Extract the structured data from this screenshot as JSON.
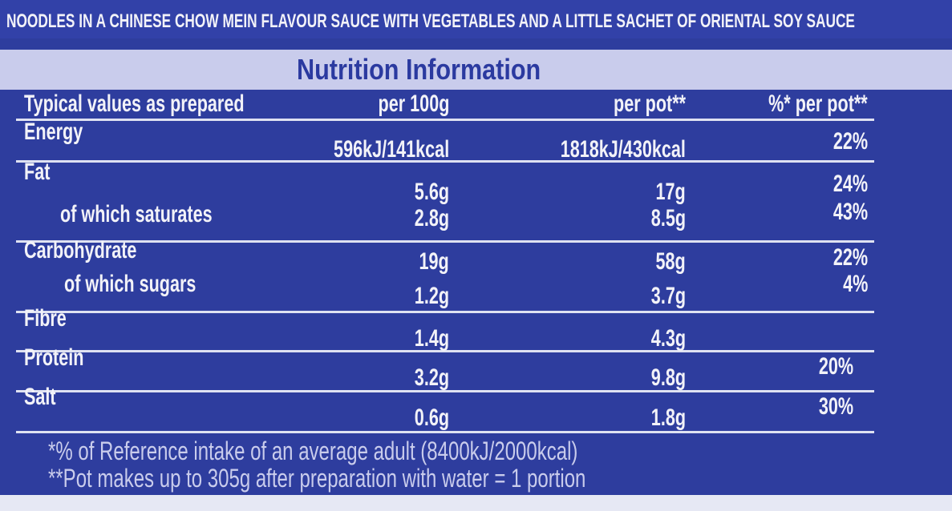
{
  "header": {
    "description": "NOODLES IN A CHINESE CHOW MEIN FLAVOUR SAUCE WITH VEGETABLES AND A LITTLE SACHET OF ORIENTAL SOY SAUCE",
    "title": "Nutrition Information"
  },
  "table": {
    "columns": [
      "Typical values as prepared",
      "per 100g",
      "per pot**",
      "%* per pot**"
    ],
    "rows": [
      {
        "name": "Energy",
        "per_100g": "596kJ/141kcal",
        "per_pot": "1818kJ/430kcal",
        "ri": "22%"
      },
      {
        "name": "Fat",
        "per_100g": "5.6g",
        "per_pot": "17g",
        "ri": "24%"
      },
      {
        "name": "of which saturates",
        "per_100g": "2.8g",
        "per_pot": "8.5g",
        "ri": "43%"
      },
      {
        "name": "Carbohydrate",
        "per_100g": "19g",
        "per_pot": "58g",
        "ri": "22%"
      },
      {
        "name": "of which sugars",
        "per_100g": "1.2g",
        "per_pot": "3.7g",
        "ri": "4%"
      },
      {
        "name": "Fibre",
        "per_100g": "1.4g",
        "per_pot": "4.3g"
      },
      {
        "name": "Protein",
        "per_100g": "3.2g",
        "per_pot": "9.8g",
        "ri": "20%"
      },
      {
        "name": "Salt",
        "per_100g": "0.6g",
        "per_pot": "1.8g",
        "ri": "30%"
      }
    ]
  },
  "footnotes": [
    "*% of Reference intake of an average adult (8400kJ/2000kcal)",
    "**Pot makes up to 305g after preparation with water = 1 portion"
  ]
}
